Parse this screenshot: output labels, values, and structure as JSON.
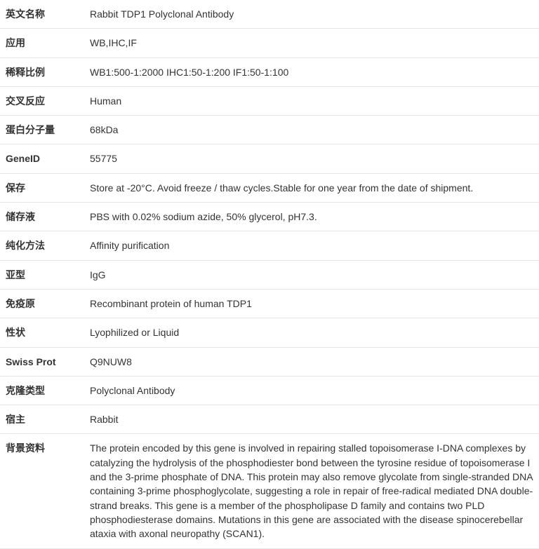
{
  "rows": [
    {
      "label": "英文名称",
      "value": "Rabbit TDP1 Polyclonal Antibody"
    },
    {
      "label": "应用",
      "value": "WB,IHC,IF"
    },
    {
      "label": "稀释比例",
      "value": "WB1:500-1:2000 IHC1:50-1:200 IF1:50-1:100"
    },
    {
      "label": "交叉反应",
      "value": "Human"
    },
    {
      "label": "蛋白分子量",
      "value": "68kDa"
    },
    {
      "label": "GeneID",
      "value": "55775"
    },
    {
      "label": "保存",
      "value": "Store at -20°C. Avoid freeze / thaw cycles.Stable for one year from the date of shipment."
    },
    {
      "label": "储存液",
      "value": "PBS with 0.02% sodium azide, 50% glycerol, pH7.3."
    },
    {
      "label": "纯化方法",
      "value": "Affinity purification"
    },
    {
      "label": "亚型",
      "value": "IgG"
    },
    {
      "label": "免疫原",
      "value": "Recombinant protein of human TDP1"
    },
    {
      "label": "性状",
      "value": "Lyophilized or Liquid"
    },
    {
      "label": "Swiss Prot",
      "value": "Q9NUW8"
    },
    {
      "label": "克隆类型",
      "value": "Polyclonal Antibody"
    },
    {
      "label": "宿主",
      "value": "Rabbit"
    },
    {
      "label": "背景资料",
      "value": "The protein encoded by this gene is involved in repairing stalled topoisomerase I-DNA complexes by catalyzing the hydrolysis of the phosphodiester bond between the tyrosine residue of topoisomerase I and the 3-prime phosphate of DNA. This protein may also remove glycolate from single-stranded DNA containing 3-prime phosphoglycolate, suggesting a role in repair of free-radical mediated DNA double-strand breaks. This gene is a member of the phospholipase D family and contains two PLD phosphodiesterase domains. Mutations in this gene are associated with the disease spinocerebellar ataxia with axonal neuropathy (SCAN1)."
    }
  ]
}
